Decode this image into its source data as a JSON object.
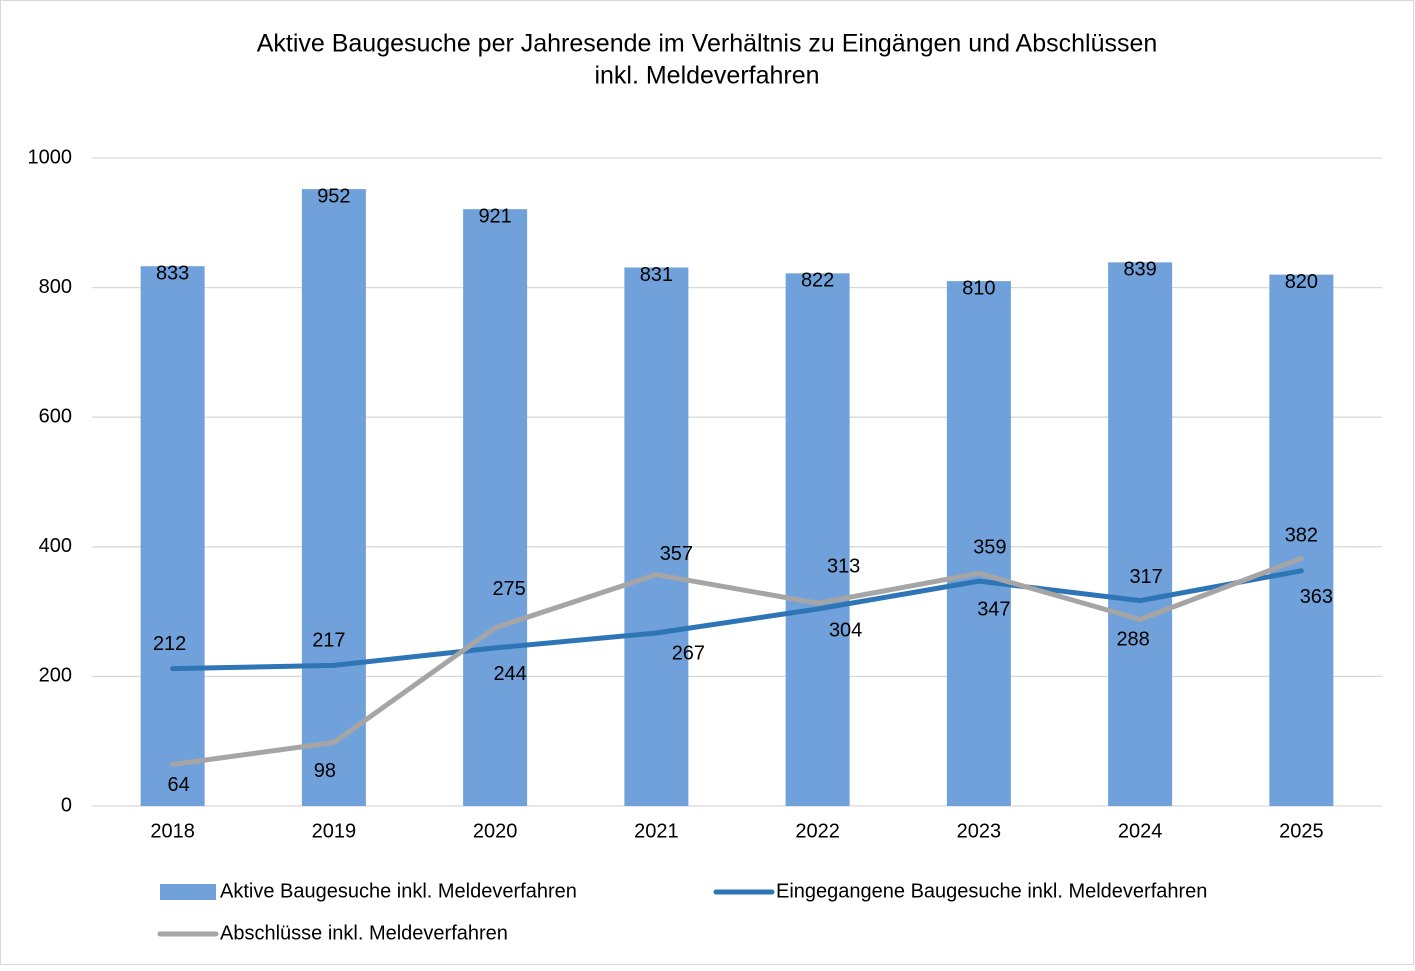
{
  "chart_data": {
    "type": "combo",
    "title": [
      "Aktive Baugesuche per Jahresende im Verhältnis zu Eingängen und Abschlüssen",
      "inkl. Meldeverfahren"
    ],
    "categories": [
      "2018",
      "2019",
      "2020",
      "2021",
      "2022",
      "2023",
      "2024",
      "2025"
    ],
    "series": [
      {
        "name": "Aktive Baugesuche inkl. Meldeverfahren",
        "type": "bar",
        "color": "#71a1da",
        "values": [
          833,
          952,
          921,
          831,
          822,
          810,
          839,
          820
        ]
      },
      {
        "name": "Eingegangene Baugesuche inkl. Meldeverfahren",
        "type": "line",
        "color": "#2e75b6",
        "values": [
          212,
          217,
          244,
          267,
          304,
          347,
          317,
          363
        ]
      },
      {
        "name": "Abschlüsse inkl. Meldeverfahren",
        "type": "line",
        "color": "#a5a5a5",
        "values": [
          64,
          98,
          275,
          357,
          313,
          359,
          288,
          382
        ]
      }
    ],
    "ylim": [
      0,
      1000
    ],
    "yticks": [
      0,
      200,
      400,
      600,
      800,
      1000
    ],
    "grid": true,
    "legend": "bottom"
  }
}
